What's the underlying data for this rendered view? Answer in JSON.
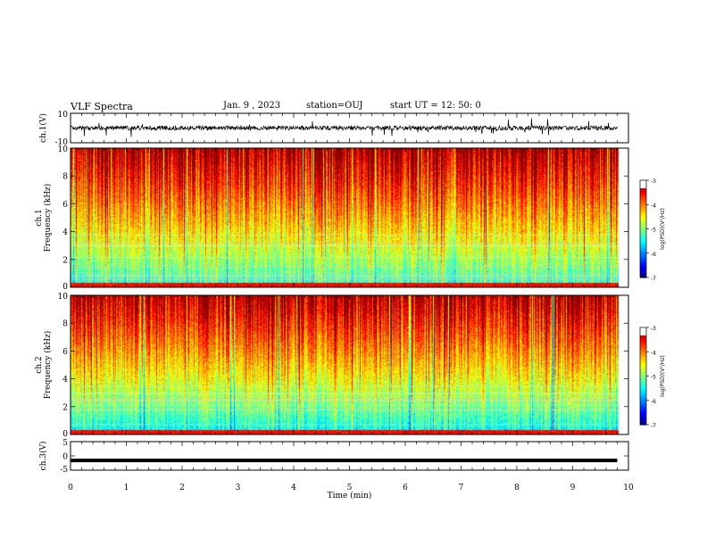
{
  "header": {
    "title": "VLF Spectra",
    "date": "Jan. 9 , 2023",
    "station": "station=OUJ",
    "start": "start UT =   12: 50: 0"
  },
  "chart_data": [
    {
      "type": "line",
      "name": "ch1-waveform",
      "ylabel": "ch.1(V)",
      "yticks": [
        "10",
        "-10"
      ],
      "ylim": [
        -10,
        10
      ],
      "xlim": [
        0,
        10
      ],
      "baseline": 0,
      "noise_amplitude": 3,
      "data_end_x": 9.8
    },
    {
      "type": "heatmap",
      "name": "ch1-spectrogram",
      "ylabel": "ch.1\nFrequency  (kHz)",
      "ylim": [
        0,
        10
      ],
      "yticks": [
        "0",
        "2",
        "4",
        "6",
        "8",
        "10"
      ],
      "xlim": [
        0,
        10
      ],
      "data_end_x": 9.8,
      "colorbar": {
        "label": "log(PSD)(V²/Hz)",
        "ticks": [
          "-3",
          "-4",
          "-5",
          "-6",
          "-7"
        ],
        "range": [
          -7,
          -3
        ]
      }
    },
    {
      "type": "heatmap",
      "name": "ch2-spectrogram",
      "ylabel": "ch.2\nFrequency  (kHz)",
      "ylim": [
        0,
        10
      ],
      "yticks": [
        "0",
        "2",
        "4",
        "6",
        "8",
        "10"
      ],
      "xlim": [
        0,
        10
      ],
      "data_end_x": 9.8,
      "colorbar": {
        "label": "log(PSD)(V²/Hz)",
        "ticks": [
          "-3",
          "-4",
          "-5",
          "-6",
          "-7"
        ],
        "range": [
          -7,
          -3
        ]
      }
    },
    {
      "type": "line",
      "name": "ch3-waveform",
      "ylabel": "ch.3(V)",
      "yticks": [
        "5",
        "0",
        "-5"
      ],
      "ylim": [
        -5,
        5
      ],
      "xlim": [
        0,
        10
      ],
      "baseline": -1.6,
      "data_end_x": 9.8
    }
  ],
  "xaxis": {
    "label": "Time  (min)",
    "ticks": [
      "0",
      "1",
      "2",
      "3",
      "4",
      "5",
      "6",
      "7",
      "8",
      "9",
      "10"
    ]
  }
}
